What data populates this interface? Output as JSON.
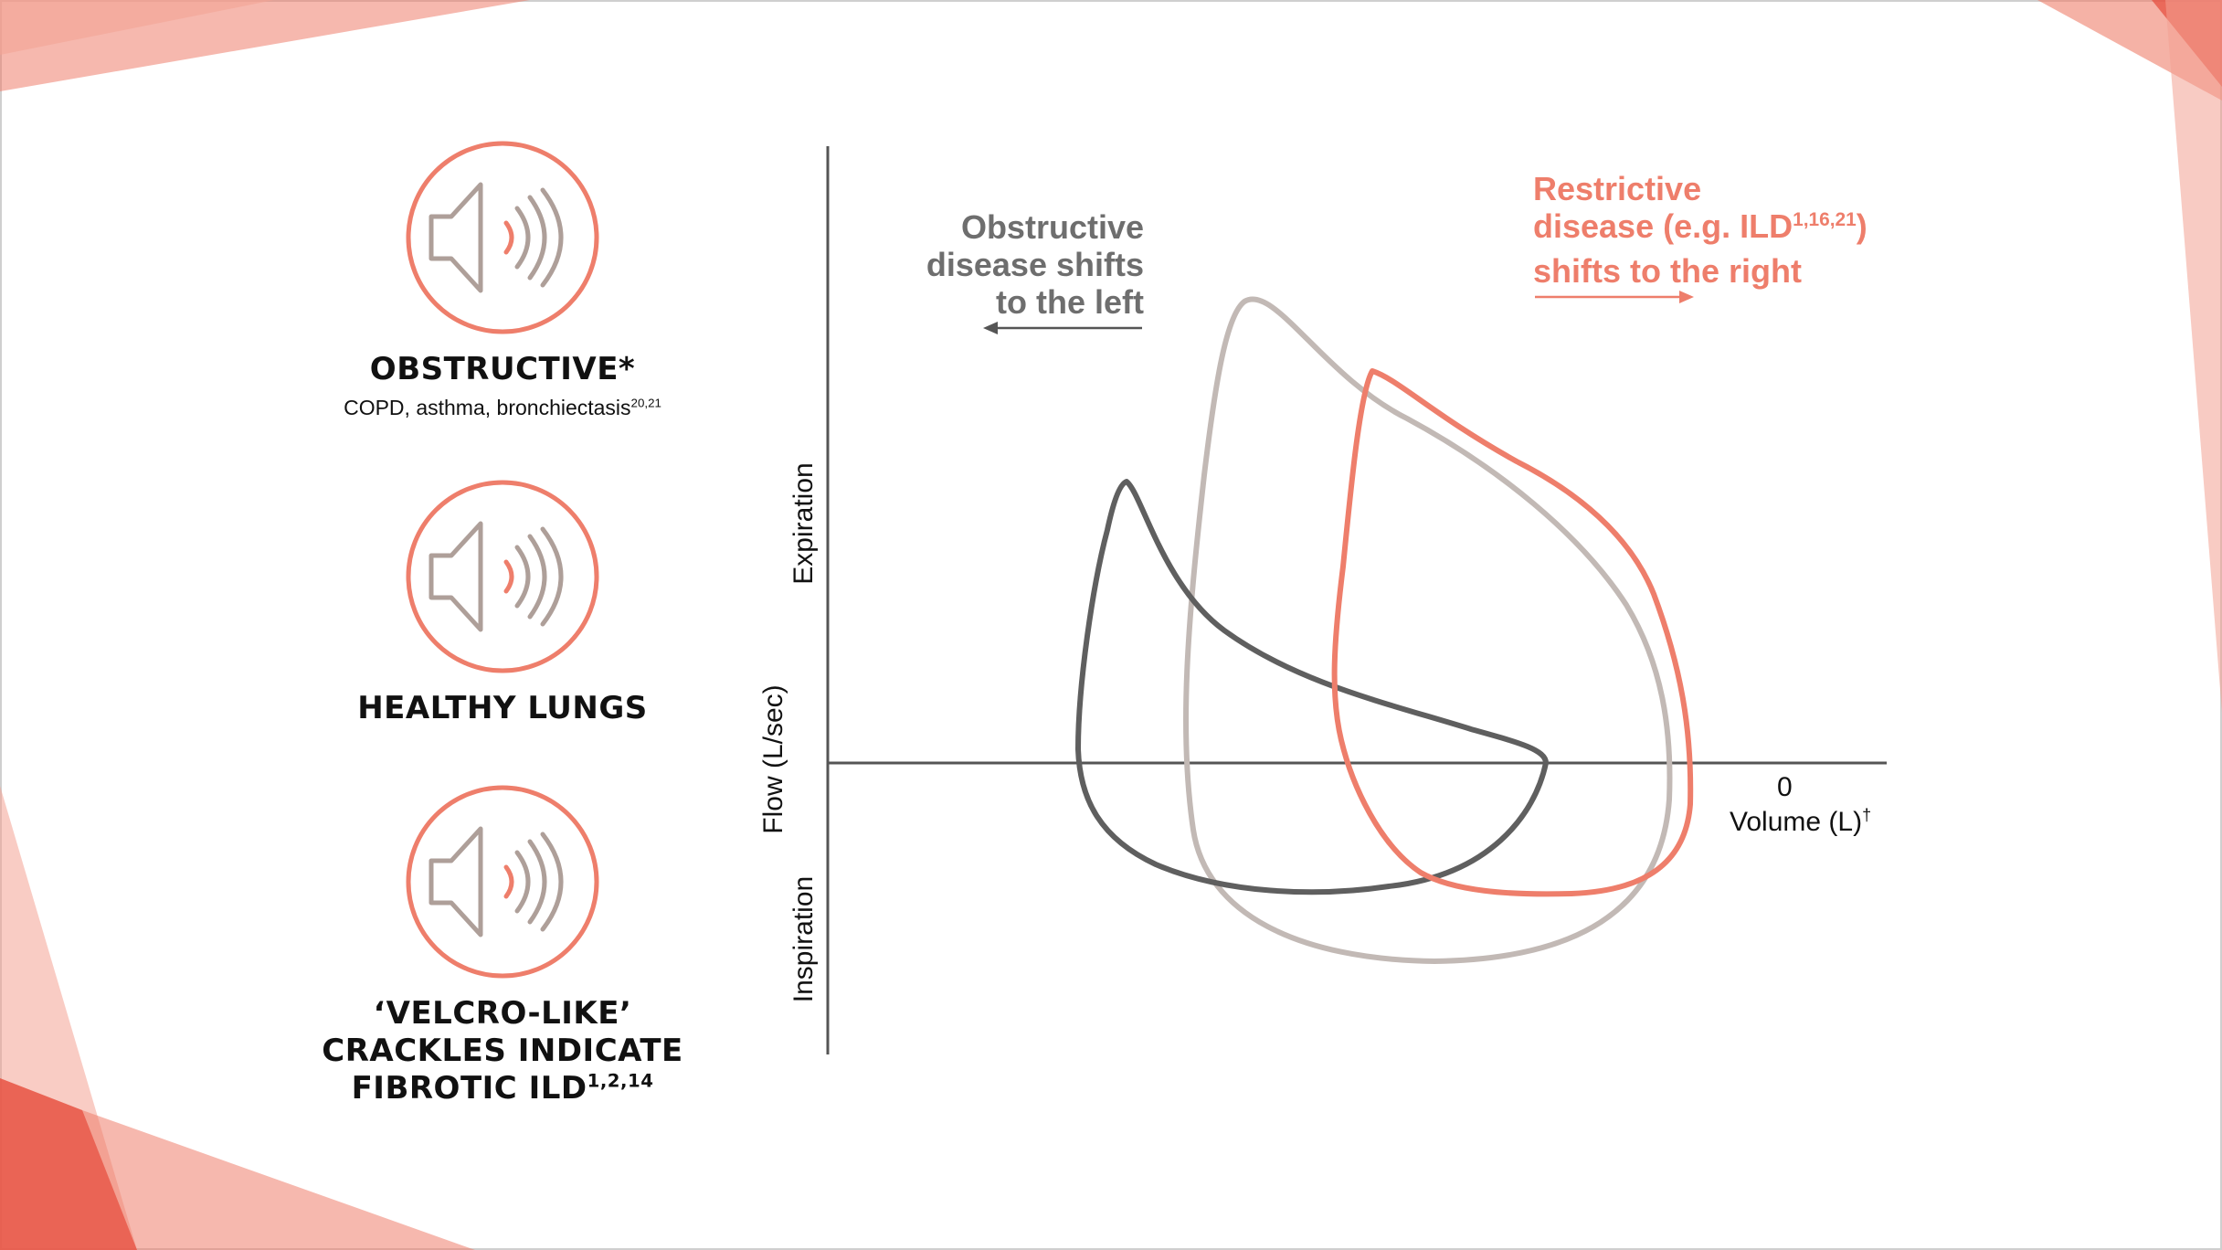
{
  "colors": {
    "accent": "#ee7e6b",
    "accent_dark": "#e64a3a",
    "obstructive_loop": "#5f5f5f",
    "healthy_loop": "#c2b9b5",
    "restrictive_loop": "#ee7e6b",
    "axis": "#555555",
    "speaker_icon": "#ae9f99"
  },
  "sounds": [
    {
      "icon": "speaker-sound-icon",
      "title": "OBSTRUCTIVE*",
      "subtitle": "COPD, asthma, bronchiectasis",
      "subtitle_refs": "20,21"
    },
    {
      "icon": "speaker-sound-icon",
      "title": "HEALTHY LUNGS"
    },
    {
      "icon": "speaker-sound-icon",
      "title_line1": "‘VELCRO-LIKE’",
      "title_line2": "CRACKLES INDICATE",
      "title_line3": "FIBROTIC ILD",
      "title_refs": "1,2,14"
    }
  ],
  "diagram": {
    "y_axis_label": "Flow (L/sec)",
    "y_upper_label": "Expiration",
    "y_lower_label": "Inspiration",
    "x_zero_label": "0",
    "x_axis_label": "Volume (L)",
    "x_axis_mark": "†",
    "obstructive_note": {
      "line1": "Obstructive",
      "line2": "disease shifts",
      "line3": "to the left",
      "arrow_direction": "left"
    },
    "restrictive_note": {
      "line1": "Restrictive",
      "line2_prefix": "disease (e.g. ILD",
      "line2_refs": "1,16,21",
      "line2_suffix": ")",
      "line3": "shifts to the right",
      "arrow_direction": "right"
    },
    "loops": [
      {
        "name": "obstructive",
        "color_key": "obstructive_loop"
      },
      {
        "name": "healthy",
        "color_key": "healthy_loop"
      },
      {
        "name": "restrictive",
        "color_key": "restrictive_loop"
      }
    ]
  }
}
